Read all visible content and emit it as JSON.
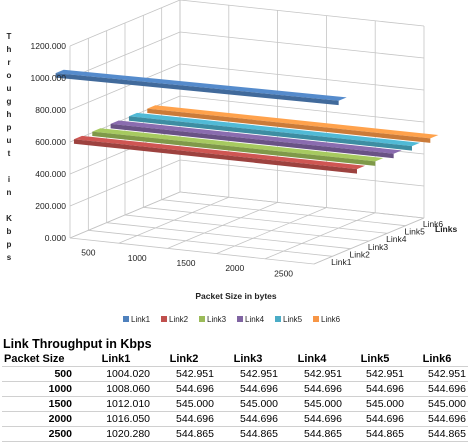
{
  "chart_data": {
    "type": "bar3d",
    "title": "",
    "ylabel": "Throughput in Kbps",
    "xlabel": "Packet Size in bytes",
    "zlabel": "Links",
    "x": [
      500,
      1000,
      1500,
      2000,
      2500
    ],
    "x_ticks": [
      "500",
      "1000",
      "1500",
      "2000",
      "2500"
    ],
    "y_ticks": [
      "0.000",
      "200.000",
      "400.000",
      "600.000",
      "800.000",
      "1000.000",
      "1200.000"
    ],
    "ylim": [
      0,
      1200
    ],
    "grid": true,
    "legend": "bottom",
    "series": [
      {
        "name": "Link1",
        "color": "#4f81bd",
        "values": [
          1004.02,
          1008.06,
          1012.01,
          1016.05,
          1020.28
        ]
      },
      {
        "name": "Link2",
        "color": "#c0504d",
        "values": [
          542.951,
          544.696,
          545.0,
          544.696,
          544.865
        ]
      },
      {
        "name": "Link3",
        "color": "#9bbb59",
        "values": [
          542.951,
          544.696,
          545.0,
          544.696,
          544.865
        ]
      },
      {
        "name": "Link4",
        "color": "#8064a2",
        "values": [
          542.951,
          544.696,
          545.0,
          544.696,
          544.865
        ]
      },
      {
        "name": "Link5",
        "color": "#4bacc6",
        "values": [
          542.951,
          544.696,
          545.0,
          544.696,
          544.865
        ]
      },
      {
        "name": "Link6",
        "color": "#f79646",
        "values": [
          542.951,
          544.696,
          545.0,
          544.696,
          544.865
        ]
      }
    ]
  },
  "table": {
    "title": "Link Throughput in Kbps",
    "headers": [
      "Packet Size",
      "Link1",
      "Link2",
      "Link3",
      "Link4",
      "Link5",
      "Link6"
    ],
    "rows": [
      [
        "500",
        "1004.020",
        "542.951",
        "542.951",
        "542.951",
        "542.951",
        "542.951"
      ],
      [
        "1000",
        "1008.060",
        "544.696",
        "544.696",
        "544.696",
        "544.696",
        "544.696"
      ],
      [
        "1500",
        "1012.010",
        "545.000",
        "545.000",
        "545.000",
        "545.000",
        "545.000"
      ],
      [
        "2000",
        "1016.050",
        "544.696",
        "544.696",
        "544.696",
        "544.696",
        "544.696"
      ],
      [
        "2500",
        "1020.280",
        "544.865",
        "544.865",
        "544.865",
        "544.865",
        "544.865"
      ]
    ]
  }
}
